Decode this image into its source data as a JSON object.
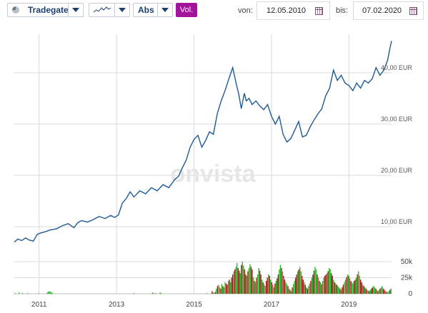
{
  "toolbar": {
    "exchange": "Tradegate",
    "scale_mode": "Abs",
    "volume_toggle": "Vol.",
    "from_label": "von:",
    "from_date": "12.05.2010",
    "to_label": "bis:",
    "to_date": "07.02.2020"
  },
  "colors": {
    "line": "#1f5a96",
    "vol_up": "#2db52d",
    "vol_down": "#aa1b1b",
    "accent": "#a3139b"
  },
  "watermark": "onvista",
  "chart_data": {
    "type": "line",
    "price_axis": {
      "unit": "EUR",
      "range": [
        5,
        47.5
      ],
      "ticks": [
        "10,00 EUR",
        "20,00 EUR",
        "30,00 EUR",
        "40,00 EUR"
      ],
      "tick_values": [
        10,
        20,
        30,
        40
      ]
    },
    "volume_axis": {
      "range": [
        0,
        60
      ],
      "ticks": [
        "0",
        "25k",
        "50k"
      ],
      "tick_values": [
        0,
        25,
        50
      ]
    },
    "x_range": [
      2010.36,
      2020.1
    ],
    "x_ticks": [
      "2011",
      "2013",
      "2015",
      "2017",
      "2019"
    ],
    "x_tick_values": [
      2011,
      2013,
      2015,
      2017,
      2019
    ],
    "price": {
      "x": [
        2010.36,
        2010.45,
        2010.55,
        2010.65,
        2010.75,
        2010.85,
        2010.95,
        2011.05,
        2011.15,
        2011.3,
        2011.45,
        2011.6,
        2011.75,
        2011.9,
        2012.0,
        2012.1,
        2012.25,
        2012.4,
        2012.55,
        2012.7,
        2012.85,
        2012.95,
        2013.05,
        2013.15,
        2013.25,
        2013.35,
        2013.45,
        2013.6,
        2013.75,
        2013.9,
        2014.05,
        2014.2,
        2014.35,
        2014.5,
        2014.6,
        2014.7,
        2014.8,
        2014.9,
        2015.0,
        2015.1,
        2015.2,
        2015.3,
        2015.4,
        2015.5,
        2015.6,
        2015.7,
        2015.8,
        2015.9,
        2016.0,
        2016.1,
        2016.15,
        2016.22,
        2016.3,
        2016.35,
        2016.42,
        2016.5,
        2016.6,
        2016.7,
        2016.8,
        2016.9,
        2017.0,
        2017.1,
        2017.2,
        2017.3,
        2017.4,
        2017.5,
        2017.6,
        2017.7,
        2017.8,
        2017.9,
        2018.0,
        2018.1,
        2018.2,
        2018.3,
        2018.4,
        2018.5,
        2018.6,
        2018.7,
        2018.8,
        2018.9,
        2019.0,
        2019.1,
        2019.2,
        2019.3,
        2019.4,
        2019.5,
        2019.6,
        2019.7,
        2019.8,
        2019.9,
        2020.0,
        2020.05,
        2020.1
      ],
      "y": [
        7.0,
        7.6,
        7.3,
        7.8,
        7.4,
        7.2,
        8.5,
        8.8,
        9.0,
        9.4,
        9.6,
        10.2,
        10.6,
        9.8,
        10.8,
        11.2,
        10.9,
        11.4,
        12.0,
        11.6,
        12.2,
        11.8,
        12.3,
        14.6,
        15.5,
        16.8,
        15.8,
        17.0,
        16.4,
        17.6,
        17.0,
        18.2,
        17.6,
        19.2,
        19.8,
        21.5,
        23.0,
        25.5,
        27.0,
        27.8,
        25.5,
        26.8,
        28.5,
        28.0,
        32.0,
        34.5,
        36.5,
        38.8,
        41.0,
        37.5,
        36.0,
        33.0,
        36.0,
        34.5,
        35.0,
        33.8,
        34.5,
        33.5,
        32.8,
        33.8,
        31.5,
        30.0,
        31.5,
        28.0,
        26.5,
        27.2,
        28.8,
        30.5,
        27.5,
        27.8,
        29.5,
        30.8,
        32.0,
        33.0,
        35.5,
        37.0,
        40.5,
        38.5,
        39.5,
        38.0,
        37.5,
        36.5,
        38.0,
        37.0,
        38.5,
        38.0,
        38.8,
        41.0,
        39.5,
        40.5,
        42.5,
        44.5,
        46.2
      ]
    },
    "volume": {
      "values": [
        1,
        0,
        0,
        0,
        2,
        0,
        0,
        1,
        0,
        0,
        0,
        0,
        1,
        0,
        0,
        0,
        0,
        0,
        0,
        0,
        0,
        0,
        1,
        0,
        0,
        0,
        0,
        0,
        0,
        0,
        2,
        3,
        4,
        3,
        2,
        1,
        0,
        0,
        0,
        0,
        0,
        0,
        0,
        0,
        0,
        0,
        0,
        0,
        0,
        0,
        0,
        0,
        0,
        0,
        0,
        0,
        0,
        0,
        0,
        0,
        0,
        0,
        0,
        0,
        0,
        0,
        0,
        0,
        0,
        0,
        0,
        0,
        0,
        0,
        0,
        0,
        0,
        0,
        0,
        0,
        0,
        0,
        0,
        0,
        0,
        0,
        0,
        0,
        0,
        0,
        0,
        0,
        0,
        0,
        0,
        0,
        0,
        0,
        0,
        0,
        0,
        0,
        0,
        0,
        0,
        0,
        0,
        0,
        0,
        0,
        1,
        0,
        0,
        0,
        0,
        0,
        0,
        0,
        0,
        0,
        0,
        0,
        0,
        0,
        0,
        0,
        0,
        2,
        1,
        0,
        1,
        0,
        0,
        0,
        2,
        1,
        0,
        0,
        0,
        0,
        0,
        0,
        0,
        0,
        0,
        0,
        0,
        0,
        0,
        0,
        0,
        0,
        0,
        0,
        0,
        0,
        0,
        0,
        0,
        0,
        0,
        0,
        0,
        0,
        0,
        0,
        0,
        0,
        0,
        0,
        0,
        0,
        0,
        0,
        0,
        0,
        0,
        1,
        0,
        0,
        0,
        0,
        4,
        2,
        1,
        3,
        8,
        12,
        14,
        10,
        8,
        15,
        12,
        10,
        18,
        16,
        14,
        20,
        22,
        18,
        25,
        30,
        35,
        38,
        42,
        48,
        40,
        36,
        32,
        45,
        50,
        44,
        38,
        30,
        28,
        35,
        40,
        46,
        42,
        38,
        26,
        20,
        18,
        25,
        30,
        40,
        36,
        30,
        22,
        18,
        15,
        12,
        20,
        25,
        30,
        28,
        22,
        18,
        14,
        10,
        16,
        20,
        24,
        30,
        38,
        45,
        40,
        35,
        28,
        22,
        18,
        15,
        12,
        8,
        6,
        4,
        10,
        15,
        20,
        25,
        30,
        35,
        38,
        42,
        35,
        28,
        22,
        18,
        14,
        10,
        8,
        12,
        16,
        20,
        25,
        30,
        36,
        42,
        38,
        30,
        25,
        20,
        18,
        15,
        20,
        25,
        28,
        30,
        32,
        35,
        40,
        38,
        32,
        28,
        22,
        18,
        16,
        14,
        12,
        10,
        8,
        6,
        10,
        14,
        18,
        22,
        26,
        30,
        28,
        24,
        20,
        18,
        16,
        20,
        22,
        25,
        30,
        35,
        28,
        22,
        18,
        14,
        12,
        10,
        8,
        6,
        5,
        4,
        6,
        8,
        10,
        12,
        10,
        8,
        6,
        4,
        6,
        8,
        10,
        12,
        8,
        6,
        4,
        3,
        2,
        4,
        6,
        8
      ],
      "up": [
        1,
        1,
        1,
        1,
        1,
        1,
        1,
        1,
        1,
        1,
        1,
        1,
        1,
        1,
        1,
        1,
        1,
        1,
        1,
        1,
        1,
        1,
        1,
        1,
        1,
        1,
        1,
        1,
        1,
        1,
        1,
        1,
        1,
        1,
        1,
        1,
        1,
        1,
        1,
        1,
        1,
        1,
        1,
        1,
        1,
        1,
        1,
        1,
        1,
        1,
        1,
        1,
        1,
        1,
        1,
        1,
        1,
        1,
        1,
        1,
        1,
        1,
        1,
        1,
        1,
        1,
        1,
        1,
        1,
        1,
        1,
        1,
        1,
        1,
        1,
        1,
        1,
        1,
        1,
        1,
        1,
        1,
        1,
        1,
        1,
        1,
        1,
        1,
        1,
        1,
        1,
        1,
        1,
        1,
        1,
        1,
        1,
        1,
        1,
        1,
        1,
        1,
        1,
        1,
        1,
        1,
        1,
        1,
        1,
        1,
        1,
        1,
        1,
        1,
        1,
        1,
        1,
        1,
        1,
        1,
        1,
        1,
        1,
        1,
        1,
        1,
        1,
        1,
        1,
        1,
        1,
        1,
        1,
        1,
        1,
        1,
        1,
        1,
        1,
        1,
        1,
        1,
        1,
        1,
        1,
        1,
        1,
        1,
        1,
        1,
        1,
        1,
        1,
        1,
        1,
        1,
        1,
        1,
        1,
        1,
        1,
        1,
        1,
        1,
        1,
        1,
        1,
        1,
        1,
        1,
        1,
        1,
        1,
        1,
        1,
        1,
        1,
        1,
        1,
        1,
        1,
        1,
        0,
        1,
        1,
        0,
        1,
        0,
        1,
        1,
        0,
        1,
        0,
        1,
        1,
        0,
        0,
        1,
        0,
        1,
        0,
        0,
        1,
        0,
        1,
        1,
        0,
        0,
        1,
        0,
        1,
        1,
        0,
        0,
        1,
        0,
        1,
        1,
        0,
        0,
        1,
        0,
        1,
        0,
        1,
        1,
        0,
        0,
        1,
        0,
        1,
        1,
        0,
        0,
        1,
        0,
        1,
        0,
        1,
        1,
        0,
        1,
        0,
        0,
        1,
        1,
        0,
        1,
        0,
        0,
        1,
        1,
        0,
        1,
        0,
        1,
        0,
        1,
        1,
        0,
        0,
        1,
        0,
        1,
        1,
        0,
        0,
        1,
        0,
        1,
        0,
        1,
        1,
        0,
        1,
        0,
        0,
        1,
        1,
        0,
        1,
        0,
        1,
        0,
        1,
        1,
        0,
        0,
        1,
        0,
        1,
        1,
        0,
        0,
        1,
        0,
        1,
        0,
        1,
        1,
        0,
        1,
        0,
        0,
        1,
        1,
        0,
        1,
        0,
        1,
        0,
        1,
        1,
        0,
        0,
        1,
        0,
        1,
        1,
        0,
        0,
        1,
        0,
        1,
        0,
        1,
        1,
        0,
        1,
        0,
        0,
        1,
        1,
        0,
        1,
        0,
        1,
        0,
        1,
        1,
        0,
        0,
        1,
        0,
        1,
        1,
        0,
        1
      ]
    }
  }
}
